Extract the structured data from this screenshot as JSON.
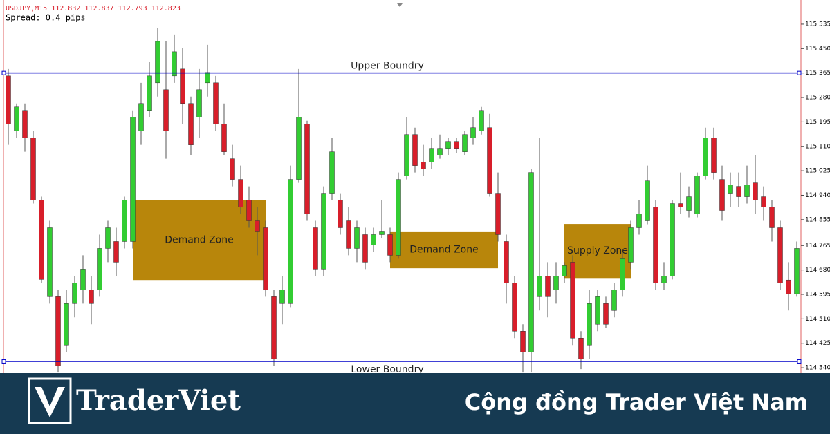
{
  "chart_data": {
    "type": "candlestick",
    "title": "USDJPY,M15  112.832 112.837 112.793 112.823",
    "subtitle": "Spread: 0.4 pips",
    "up_color": "#32cd32",
    "down_color": "#d81e2a",
    "ylim": [
      114.321,
      115.619
    ],
    "yticks": [
      {
        "value": 115.535,
        "label": "115.535"
      },
      {
        "value": 115.45,
        "label": "115.450"
      },
      {
        "value": 115.365,
        "label": "115.365"
      },
      {
        "value": 115.28,
        "label": "115.280"
      },
      {
        "value": 115.195,
        "label": "115.195"
      },
      {
        "value": 115.11,
        "label": "115.110"
      },
      {
        "value": 115.025,
        "label": "115.025"
      },
      {
        "value": 114.94,
        "label": "114.940"
      },
      {
        "value": 114.855,
        "label": "114.855"
      },
      {
        "value": 114.765,
        "label": "114.765"
      },
      {
        "value": 114.68,
        "label": "114.680"
      },
      {
        "value": 114.595,
        "label": "114.595"
      },
      {
        "value": 114.51,
        "label": "114.510"
      },
      {
        "value": 114.425,
        "label": "114.425"
      },
      {
        "value": 114.34,
        "label": "114.340"
      }
    ],
    "open": [
      115.355,
      115.163,
      115.235,
      115.139,
      114.923,
      114.587,
      114.587,
      114.419,
      114.563,
      114.611,
      114.611,
      114.611,
      114.755,
      114.779,
      114.779,
      114.779,
      115.163,
      115.235,
      115.331,
      115.307,
      115.355,
      115.379,
      115.259,
      115.211,
      115.331,
      115.331,
      115.187,
      115.067,
      114.995,
      114.923,
      114.851,
      114.827,
      114.587,
      114.563,
      114.563,
      114.995,
      115.187,
      114.827,
      114.683,
      114.947,
      114.923,
      114.851,
      114.755,
      114.803,
      114.767,
      114.803,
      114.803,
      114.731,
      115.007,
      115.151,
      115.055,
      115.055,
      115.079,
      115.103,
      115.127,
      115.091,
      115.139,
      115.163,
      115.175,
      114.947,
      114.779,
      114.635,
      114.467,
      114.395,
      114.587,
      114.659,
      114.611,
      114.659,
      114.707,
      114.443,
      114.419,
      114.491,
      114.563,
      114.539,
      114.611,
      114.707,
      114.827,
      114.851,
      114.899,
      114.635,
      114.659,
      114.911,
      114.887,
      114.875,
      115.007,
      115.139,
      114.995,
      114.947,
      114.971,
      114.935,
      114.983,
      114.935,
      114.899,
      114.827,
      114.645,
      114.597
    ],
    "high": [
      115.379,
      115.259,
      115.259,
      115.163,
      114.935,
      114.851,
      114.611,
      114.611,
      114.659,
      114.731,
      114.659,
      114.803,
      114.851,
      114.827,
      114.935,
      115.235,
      115.331,
      115.403,
      115.523,
      115.475,
      115.499,
      115.451,
      115.283,
      115.379,
      115.463,
      115.355,
      115.259,
      115.115,
      115.043,
      114.971,
      114.899,
      114.851,
      114.611,
      114.659,
      115.043,
      115.379,
      115.199,
      114.851,
      114.971,
      115.139,
      114.947,
      114.899,
      114.851,
      114.827,
      114.827,
      114.923,
      114.827,
      115.019,
      115.211,
      115.175,
      115.115,
      115.139,
      115.151,
      115.139,
      115.139,
      115.163,
      115.211,
      115.247,
      115.223,
      115.019,
      114.803,
      114.659,
      114.491,
      115.031,
      115.139,
      114.707,
      114.707,
      114.707,
      114.731,
      114.467,
      114.611,
      114.611,
      114.587,
      114.635,
      114.743,
      114.851,
      114.923,
      115.043,
      114.923,
      114.707,
      114.923,
      115.019,
      114.971,
      115.019,
      115.175,
      115.175,
      115.043,
      115.019,
      115.019,
      115.043,
      115.079,
      114.971,
      114.923,
      114.851,
      114.707,
      114.779
    ],
    "low": [
      115.115,
      115.139,
      115.091,
      114.911,
      114.635,
      114.563,
      114.323,
      114.395,
      114.515,
      114.563,
      114.491,
      114.587,
      114.707,
      114.659,
      114.755,
      114.755,
      115.115,
      115.211,
      115.283,
      115.067,
      115.331,
      115.187,
      115.079,
      115.139,
      115.283,
      115.163,
      115.079,
      114.971,
      114.875,
      114.827,
      114.731,
      114.587,
      114.347,
      114.491,
      114.551,
      114.983,
      114.851,
      114.659,
      114.659,
      114.923,
      114.803,
      114.731,
      114.707,
      114.683,
      114.743,
      114.791,
      114.707,
      114.719,
      114.995,
      115.019,
      115.007,
      115.031,
      115.067,
      115.079,
      115.086,
      115.079,
      115.115,
      115.151,
      114.935,
      114.779,
      114.563,
      114.443,
      114.323,
      114.323,
      114.539,
      114.515,
      114.563,
      114.635,
      114.419,
      114.335,
      114.371,
      114.467,
      114.479,
      114.515,
      114.587,
      114.683,
      114.803,
      114.839,
      114.611,
      114.611,
      114.647,
      114.875,
      114.863,
      114.863,
      114.995,
      114.995,
      114.851,
      114.899,
      114.899,
      114.911,
      114.875,
      114.851,
      114.779,
      114.611,
      114.539,
      114.587
    ],
    "close": [
      115.187,
      115.247,
      115.139,
      114.923,
      114.647,
      114.827,
      114.347,
      114.563,
      114.635,
      114.683,
      114.563,
      114.755,
      114.827,
      114.707,
      114.923,
      115.211,
      115.259,
      115.355,
      115.475,
      115.163,
      115.439,
      115.259,
      115.115,
      115.307,
      115.367,
      115.187,
      115.091,
      114.995,
      114.899,
      114.851,
      114.815,
      114.611,
      114.371,
      114.611,
      114.995,
      115.211,
      114.875,
      114.683,
      114.947,
      115.091,
      114.827,
      114.755,
      114.827,
      114.707,
      114.803,
      114.815,
      114.731,
      114.995,
      115.151,
      115.043,
      115.031,
      115.103,
      115.103,
      115.127,
      115.103,
      115.151,
      115.175,
      115.235,
      114.947,
      114.803,
      114.635,
      114.467,
      114.395,
      115.019,
      114.659,
      114.587,
      114.659,
      114.695,
      114.443,
      114.371,
      114.563,
      114.587,
      114.491,
      114.611,
      114.719,
      114.827,
      114.875,
      114.99,
      114.635,
      114.659,
      114.911,
      114.899,
      114.935,
      115.007,
      115.139,
      115.019,
      114.887,
      114.976,
      114.935,
      114.976,
      114.923,
      114.899,
      114.827,
      114.635,
      114.597,
      114.755
    ],
    "hlines": [
      {
        "label": "Upper Boundry",
        "value": 115.365
      },
      {
        "label": "Lower Boundry",
        "value": 114.362
      }
    ],
    "hline_color": "#0000c8",
    "zones": [
      {
        "label": "Demand Zone",
        "start": 15,
        "end": 31,
        "top": 114.922,
        "bottom": 114.645
      },
      {
        "label": "Demand Zone",
        "start": 46,
        "end": 59,
        "top": 114.814,
        "bottom": 114.686
      },
      {
        "label": "Supply Zone",
        "start": 67,
        "end": 75,
        "top": 114.84,
        "bottom": 114.652
      }
    ],
    "zone_color": "#b8860b"
  },
  "banner": {
    "logo": "TraderViet",
    "slogan": "Cộng đồng Trader Việt Nam"
  }
}
